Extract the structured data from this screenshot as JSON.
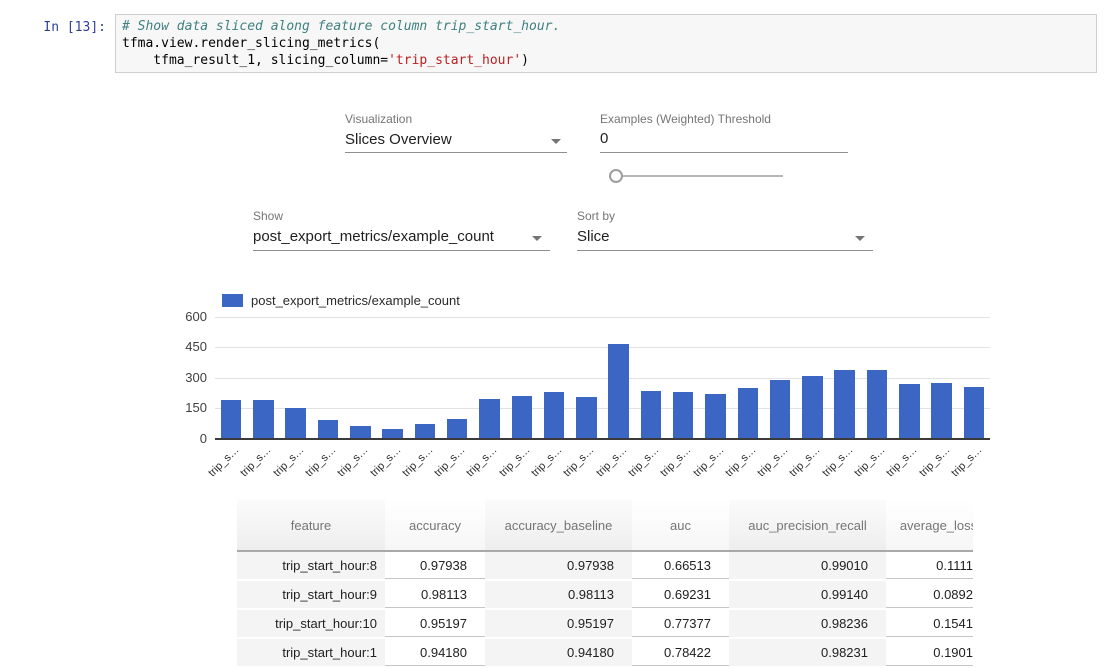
{
  "notebook": {
    "prompt": "In [13]:",
    "code": {
      "comment": "# Show data sliced along feature column trip_start_hour.",
      "line2": "tfma.view.render_slicing_metrics(",
      "line3_pre": "    tfma_result_1, slicing_column=",
      "line3_string": "'trip_start_hour'",
      "line3_end": ")"
    },
    "colors": {
      "prompt": "#303f9f",
      "comment": "#408080",
      "string": "#ba2121"
    }
  },
  "controls": {
    "visualization": {
      "label": "Visualization",
      "value": "Slices Overview"
    },
    "threshold": {
      "label": "Examples (Weighted) Threshold",
      "value": "0",
      "slider_position": 0
    },
    "show": {
      "label": "Show",
      "value": "post_export_metrics/example_count"
    },
    "sort": {
      "label": "Sort by",
      "value": "Slice"
    }
  },
  "chart_data": {
    "type": "bar",
    "title": "",
    "xlabel": "",
    "ylabel": "",
    "legend": "post_export_metrics/example_count",
    "legend_position": "top-left",
    "grid": true,
    "ylim": [
      0,
      600
    ],
    "yticks": [
      0,
      150,
      300,
      450,
      600
    ],
    "x_tick_label": "trip_s…",
    "categories": [
      "trip_s…",
      "trip_s…",
      "trip_s…",
      "trip_s…",
      "trip_s…",
      "trip_s…",
      "trip_s…",
      "trip_s…",
      "trip_s…",
      "trip_s…",
      "trip_s…",
      "trip_s…",
      "trip_s…",
      "trip_s…",
      "trip_s…",
      "trip_s…",
      "trip_s…",
      "trip_s…",
      "trip_s…",
      "trip_s…",
      "trip_s…",
      "trip_s…",
      "trip_s…",
      "trip_s…"
    ],
    "values": [
      190,
      190,
      148,
      90,
      62,
      47,
      73,
      95,
      193,
      207,
      228,
      205,
      465,
      235,
      228,
      219,
      247,
      287,
      306,
      336,
      336,
      269,
      275,
      251
    ],
    "bar_color": "#3b66c4"
  },
  "table": {
    "columns": [
      "feature",
      "accuracy",
      "accuracy_baseline",
      "auc",
      "auc_precision_recall",
      "average_loss"
    ],
    "rows": [
      [
        "trip_start_hour:8",
        "0.97938",
        "0.97938",
        "0.66513",
        "0.99010",
        "0.1111"
      ],
      [
        "trip_start_hour:9",
        "0.98113",
        "0.98113",
        "0.69231",
        "0.99140",
        "0.0892"
      ],
      [
        "trip_start_hour:10",
        "0.95197",
        "0.95197",
        "0.77377",
        "0.98236",
        "0.1541"
      ],
      [
        "trip_start_hour:1",
        "0.94180",
        "0.94180",
        "0.78422",
        "0.98231",
        "0.1901"
      ]
    ]
  }
}
